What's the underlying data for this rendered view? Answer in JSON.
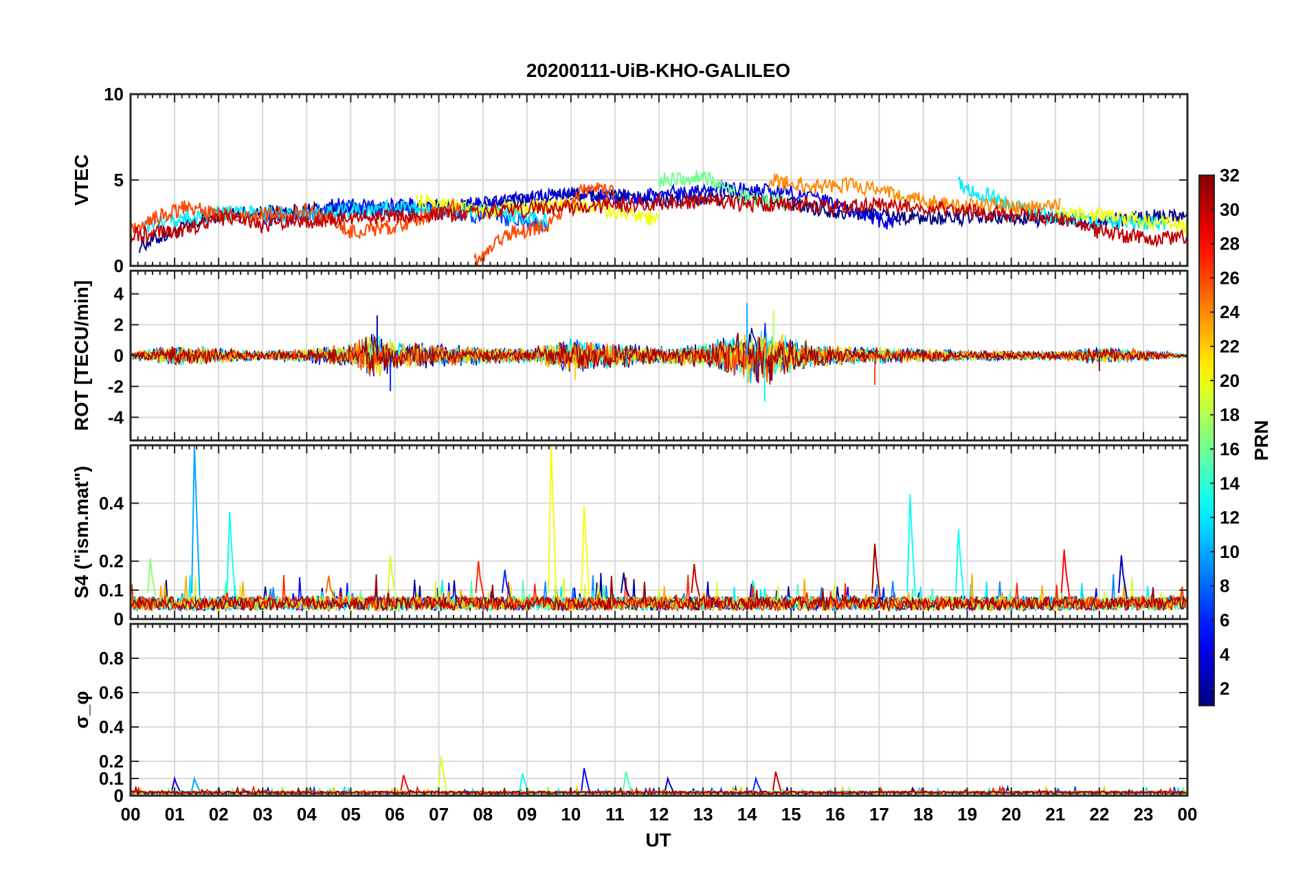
{
  "chart_data": {
    "type": "line",
    "title": "20200111-UiB-KHO-GALILEO",
    "xlabel": "UT",
    "x_range_hours": [
      0,
      24
    ],
    "x_tick_labels": [
      "00",
      "01",
      "02",
      "03",
      "04",
      "05",
      "06",
      "07",
      "08",
      "09",
      "10",
      "11",
      "12",
      "13",
      "14",
      "15",
      "16",
      "17",
      "18",
      "19",
      "20",
      "21",
      "22",
      "23",
      "00"
    ],
    "grid": true,
    "colorbar": {
      "label": "PRN",
      "colormap": "jet",
      "range": [
        1,
        32
      ],
      "tick_labels": [
        "2",
        "4",
        "6",
        "8",
        "10",
        "12",
        "14",
        "16",
        "18",
        "20",
        "22",
        "24",
        "26",
        "28",
        "30",
        "32"
      ]
    },
    "panels": [
      {
        "id": "vtec",
        "ylabel": "VTEC",
        "ylim": [
          0,
          10
        ],
        "y_tick_labels": [
          "0",
          "5",
          "10"
        ],
        "style": "wander",
        "series": [
          {
            "prn": 1,
            "x": [
              0.2,
              2,
              4,
              6,
              8,
              10,
              12,
              14,
              16,
              18,
              20,
              22,
              24
            ],
            "y": [
              1.2,
              3.0,
              3.2,
              3.3,
              3.5,
              4.2,
              3.8,
              4.0,
              3.2,
              2.8,
              2.8,
              2.6,
              3.0
            ]
          },
          {
            "prn": 4,
            "x": [
              4.5,
              6,
              8,
              10,
              11.5,
              13,
              14,
              15,
              16,
              17.5
            ],
            "y": [
              3.5,
              3.5,
              3.6,
              4.2,
              4.0,
              4.5,
              4.4,
              4.3,
              3.6,
              2.2
            ]
          },
          {
            "prn": 7,
            "x": [
              3,
              5,
              7,
              9.5
            ],
            "y": [
              2.6,
              3.4,
              3.2,
              2.4
            ]
          },
          {
            "prn": 12,
            "x": [
              0.3,
              2,
              4,
              6,
              8,
              9.5
            ],
            "y": [
              2.3,
              3.1,
              3.0,
              3.4,
              3.2,
              2.6
            ]
          },
          {
            "prn": 12,
            "x": [
              18.8,
              20,
              21,
              22,
              23.5
            ],
            "y": [
              4.8,
              3.5,
              2.8,
              2.6,
              2.5
            ]
          },
          {
            "prn": 16,
            "x": [
              12,
              13,
              14,
              15
            ],
            "y": [
              5.0,
              5.2,
              4.0,
              3.6
            ]
          },
          {
            "prn": 20,
            "x": [
              6.5,
              8,
              10,
              12
            ],
            "y": [
              3.8,
              3.2,
              3.6,
              2.7
            ]
          },
          {
            "prn": 20,
            "x": [
              21,
              22,
              23,
              24
            ],
            "y": [
              3.0,
              3.0,
              2.6,
              2.3
            ]
          },
          {
            "prn": 24,
            "x": [
              14.5,
              15.5,
              16.5,
              17.5,
              18.5,
              20,
              21.1
            ],
            "y": [
              5.0,
              4.6,
              4.7,
              4.0,
              3.6,
              3.4,
              3.6
            ]
          },
          {
            "prn": 26,
            "x": [
              0,
              1.2,
              2.5,
              4,
              5,
              6,
              7.5
            ],
            "y": [
              2.2,
              3.4,
              2.8,
              3.2,
              2.0,
              2.3,
              3.6
            ]
          },
          {
            "prn": 26,
            "x": [
              7.8,
              8.5,
              9.5,
              10.3,
              11
            ],
            "y": [
              0.2,
              1.8,
              2.4,
              4.6,
              4.2
            ]
          },
          {
            "prn": 30,
            "x": [
              0,
              1,
              2.2,
              3,
              3.5,
              5,
              7,
              8.5,
              10,
              11.5,
              13,
              14,
              15,
              16,
              17,
              18,
              19,
              20,
              21,
              22,
              23,
              24
            ],
            "y": [
              1.8,
              2.0,
              2.8,
              2.3,
              2.5,
              2.8,
              3.0,
              3.2,
              3.4,
              3.6,
              3.8,
              3.6,
              3.6,
              3.4,
              3.6,
              3.4,
              3.2,
              3.0,
              2.8,
              2.0,
              1.6,
              1.7
            ]
          }
        ]
      },
      {
        "id": "rot",
        "ylabel": "ROT [TECU/min]",
        "ylim": [
          -5.5,
          5.5
        ],
        "y_tick_labels": [
          "-4",
          "-2",
          "0",
          "2",
          "4"
        ],
        "style": "noise",
        "envelope": {
          "x": [
            0,
            1,
            3,
            5,
            5.5,
            6,
            7,
            9,
            10,
            11,
            12,
            13,
            14,
            14.5,
            15,
            16,
            17,
            18,
            19,
            21,
            22,
            23,
            24
          ],
          "y": [
            0.2,
            0.8,
            0.3,
            0.8,
            1.8,
            1.0,
            0.8,
            0.5,
            1.2,
            0.9,
            0.7,
            0.8,
            1.8,
            2.2,
            1.2,
            0.7,
            0.6,
            0.5,
            0.4,
            0.3,
            0.6,
            0.4,
            0.1
          ]
        },
        "extremes": [
          {
            "x": 5.6,
            "y": 2.6
          },
          {
            "x": 5.9,
            "y": -2.3
          },
          {
            "x": 14.0,
            "y": 3.4
          },
          {
            "x": 14.4,
            "y": -3.0
          },
          {
            "x": 14.6,
            "y": 2.9
          },
          {
            "x": 10.1,
            "y": -1.6
          },
          {
            "x": 16.9,
            "y": -1.9
          },
          {
            "x": 22.0,
            "y": -1.0
          }
        ],
        "series_prns": [
          2,
          6,
          10,
          13,
          18,
          22,
          26,
          31
        ]
      },
      {
        "id": "s4",
        "ylabel": "S4 (\"ism.mat\")",
        "ylim": [
          0,
          0.6
        ],
        "y_tick_labels": [
          "0",
          "0.1",
          "0.2",
          "0.4"
        ],
        "style": "baseline",
        "baseline": 0.06,
        "spikes": [
          {
            "prn": 10,
            "x": 1.45,
            "y": 0.6
          },
          {
            "prn": 13,
            "x": 2.25,
            "y": 0.37
          },
          {
            "prn": 17,
            "x": 0.45,
            "y": 0.21
          },
          {
            "prn": 20,
            "x": 9.55,
            "y": 0.6
          },
          {
            "prn": 20,
            "x": 10.3,
            "y": 0.39
          },
          {
            "prn": 13,
            "x": 17.7,
            "y": 0.43
          },
          {
            "prn": 13,
            "x": 18.8,
            "y": 0.31
          },
          {
            "prn": 31,
            "x": 16.9,
            "y": 0.26
          },
          {
            "prn": 28,
            "x": 21.2,
            "y": 0.24
          },
          {
            "prn": 3,
            "x": 22.5,
            "y": 0.22
          },
          {
            "prn": 30,
            "x": 12.8,
            "y": 0.19
          },
          {
            "prn": 19,
            "x": 5.9,
            "y": 0.22
          },
          {
            "prn": 27,
            "x": 7.9,
            "y": 0.2
          },
          {
            "prn": 6,
            "x": 8.5,
            "y": 0.17
          },
          {
            "prn": 2,
            "x": 11.2,
            "y": 0.16
          },
          {
            "prn": 25,
            "x": 4.5,
            "y": 0.15
          }
        ],
        "series_prns": [
          2,
          5,
          9,
          12,
          15,
          19,
          23,
          27,
          31
        ]
      },
      {
        "id": "sigma_phi",
        "ylabel": "σ_φ",
        "ylim": [
          0,
          1
        ],
        "y_tick_labels": [
          "0",
          "0.1",
          "0.2",
          "0.4",
          "0.6",
          "0.8"
        ],
        "style": "baseline",
        "baseline": 0.02,
        "spikes": [
          {
            "prn": 4,
            "x": 1.0,
            "y": 0.1
          },
          {
            "prn": 10,
            "x": 1.45,
            "y": 0.1
          },
          {
            "prn": 19,
            "x": 7.05,
            "y": 0.23
          },
          {
            "prn": 30,
            "x": 14.65,
            "y": 0.14
          },
          {
            "prn": 5,
            "x": 10.3,
            "y": 0.16
          },
          {
            "prn": 13,
            "x": 8.9,
            "y": 0.13
          },
          {
            "prn": 28,
            "x": 6.2,
            "y": 0.12
          },
          {
            "prn": 15,
            "x": 11.25,
            "y": 0.14
          },
          {
            "prn": 3,
            "x": 12.2,
            "y": 0.1
          },
          {
            "prn": 6,
            "x": 14.2,
            "y": 0.1
          }
        ],
        "series_prns": [
          3,
          7,
          12,
          17,
          22,
          27,
          31
        ]
      }
    ]
  }
}
